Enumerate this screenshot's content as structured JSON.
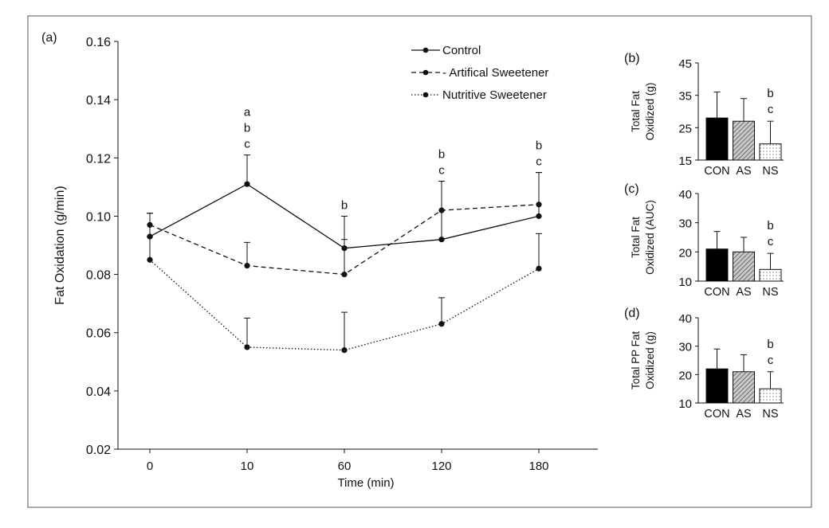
{
  "chart_data": [
    {
      "panel": "(a)",
      "type": "line",
      "xlabel": "Time (min)",
      "ylabel": "Fat Oxidation (g/min)",
      "categories": [
        "0",
        "10",
        "60",
        "120",
        "180"
      ],
      "ylim": [
        0.02,
        0.16
      ],
      "yticks": [
        "0.02",
        "0.04",
        "0.06",
        "0.08",
        "0.10",
        "0.12",
        "0.14",
        "0.16"
      ],
      "series": [
        {
          "name": "Control",
          "style": "solid",
          "values": [
            0.093,
            0.111,
            0.089,
            0.092,
            0.1
          ],
          "errors": [
            0.008,
            0.01,
            0.011,
            0.02,
            0.015
          ]
        },
        {
          "name": "- Artifical Sweetener",
          "style": "dashed",
          "values": [
            0.097,
            0.083,
            0.08,
            0.102,
            0.104
          ],
          "errors": [
            0.004,
            0.008,
            0.012,
            0.01,
            0.011
          ]
        },
        {
          "name": "Nutritive Sweetener",
          "style": "dotted",
          "values": [
            0.085,
            0.055,
            0.054,
            0.063,
            0.082
          ],
          "errors": [
            0.008,
            0.01,
            0.013,
            0.009,
            0.012
          ]
        }
      ],
      "annotations": [
        {
          "category": "10",
          "letters": [
            "a",
            "b",
            "c"
          ]
        },
        {
          "category": "60",
          "letters": [
            "b"
          ]
        },
        {
          "category": "120",
          "letters": [
            "b",
            "c"
          ]
        },
        {
          "category": "180",
          "letters": [
            "b",
            "c"
          ]
        }
      ],
      "legend": "top-right"
    },
    {
      "panel": "(b)",
      "type": "bar",
      "ylabel": [
        "Total Fat",
        "Oxidized (g)"
      ],
      "categories": [
        "CON",
        "AS",
        "NS"
      ],
      "values": [
        28,
        27,
        20
      ],
      "errors": [
        8,
        7,
        7
      ],
      "ylim": [
        15,
        45
      ],
      "yticks": [
        "15",
        "25",
        "35",
        "45"
      ],
      "annotation": [
        "b",
        "c"
      ]
    },
    {
      "panel": "(c)",
      "type": "bar",
      "ylabel": [
        "Total Fat",
        "Oxidized (AUC)"
      ],
      "categories": [
        "CON",
        "AS",
        "NS"
      ],
      "values": [
        21,
        20,
        14
      ],
      "errors": [
        6,
        5,
        5.5
      ],
      "ylim": [
        10,
        40
      ],
      "yticks": [
        "10",
        "20",
        "30",
        "40"
      ],
      "annotation": [
        "b",
        "c"
      ]
    },
    {
      "panel": "(d)",
      "type": "bar",
      "ylabel": [
        "Total PP Fat",
        "Oxidized (g)"
      ],
      "categories": [
        "CON",
        "AS",
        "NS"
      ],
      "values": [
        22,
        21,
        15
      ],
      "errors": [
        7,
        6,
        6
      ],
      "ylim": [
        10,
        40
      ],
      "yticks": [
        "10",
        "20",
        "30",
        "40"
      ],
      "annotation": [
        "b",
        "c"
      ]
    }
  ],
  "colors": {
    "line": "#111111",
    "con_fill": "#000000",
    "as_fill": "#8f8f8f",
    "ns_fill": "#f2f2f2",
    "frame": "#555555"
  }
}
